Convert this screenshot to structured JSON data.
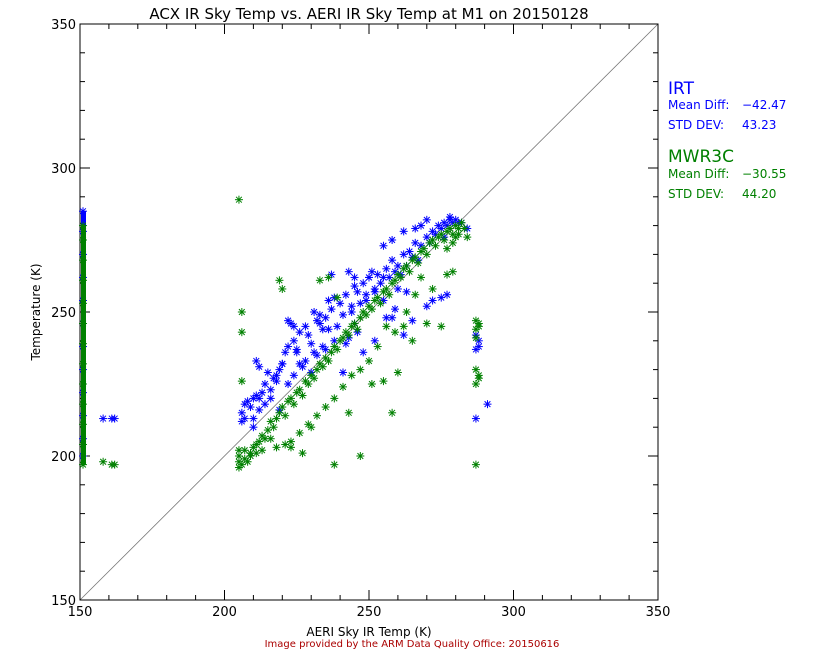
{
  "chart_data": {
    "type": "scatter",
    "title": "ACX IR Sky Temp vs. AERI IR Sky Temp at M1 on 20150128",
    "xlabel": "AERI Sky IR Temp (K)",
    "ylabel": "Temperature (K)",
    "xlim": [
      150,
      350
    ],
    "ylim": [
      150,
      350
    ],
    "xticks": [
      150,
      200,
      250,
      300,
      350
    ],
    "yticks": [
      150,
      200,
      250,
      300,
      350
    ],
    "reference_line": "y = x",
    "grid": false,
    "legend_position": "right",
    "footer": "Image provided by the ARM Data Quality Office: 20150616",
    "colors": {
      "IRT": "#0000ff",
      "MWR3C": "#008000",
      "footer": "#aa0000"
    },
    "series": [
      {
        "name": "IRT",
        "mean_diff_label": "Mean Diff:",
        "mean_diff": "−42.47",
        "std_dev_label": "STD DEV:",
        "std_dev": "43.23",
        "points": [
          [
            150,
            285
          ],
          [
            150,
            278
          ],
          [
            150,
            270
          ],
          [
            150,
            262
          ],
          [
            150,
            254
          ],
          [
            150,
            246
          ],
          [
            150,
            238
          ],
          [
            150,
            230
          ],
          [
            150,
            222
          ],
          [
            150,
            214
          ],
          [
            150,
            206
          ],
          [
            150,
            200
          ],
          [
            158,
            213
          ],
          [
            161,
            213
          ],
          [
            162,
            213
          ],
          [
            206,
            212
          ],
          [
            206,
            215
          ],
          [
            207,
            213
          ],
          [
            207,
            218
          ],
          [
            208,
            219
          ],
          [
            209,
            217
          ],
          [
            210,
            220
          ],
          [
            211,
            221
          ],
          [
            212,
            220
          ],
          [
            213,
            222
          ],
          [
            214,
            225
          ],
          [
            215,
            229
          ],
          [
            216,
            223
          ],
          [
            217,
            227
          ],
          [
            218,
            228
          ],
          [
            219,
            230
          ],
          [
            211,
            233
          ],
          [
            212,
            231
          ],
          [
            210,
            210
          ],
          [
            220,
            232
          ],
          [
            221,
            236
          ],
          [
            222,
            238
          ],
          [
            224,
            240
          ],
          [
            225,
            236
          ],
          [
            226,
            243
          ],
          [
            228,
            245
          ],
          [
            230,
            239
          ],
          [
            232,
            247
          ],
          [
            233,
            249
          ],
          [
            234,
            244
          ],
          [
            235,
            248
          ],
          [
            223,
            246
          ],
          [
            225,
            237
          ],
          [
            229,
            242
          ],
          [
            231,
            250
          ],
          [
            233,
            246
          ],
          [
            237,
            251
          ],
          [
            238,
            255
          ],
          [
            240,
            253
          ],
          [
            242,
            256
          ],
          [
            244,
            252
          ],
          [
            245,
            259
          ],
          [
            246,
            257
          ],
          [
            248,
            260
          ],
          [
            249,
            256
          ],
          [
            250,
            262
          ],
          [
            252,
            258
          ],
          [
            253,
            263
          ],
          [
            255,
            262
          ],
          [
            256,
            265
          ],
          [
            258,
            268
          ],
          [
            260,
            266
          ],
          [
            262,
            270
          ],
          [
            264,
            271
          ],
          [
            265,
            269
          ],
          [
            266,
            274
          ],
          [
            268,
            273
          ],
          [
            270,
            276
          ],
          [
            271,
            274
          ],
          [
            272,
            278
          ],
          [
            273,
            277
          ],
          [
            274,
            280
          ],
          [
            275,
            279
          ],
          [
            276,
            281
          ],
          [
            277,
            280
          ],
          [
            278,
            282
          ],
          [
            279,
            281
          ],
          [
            280,
            282
          ],
          [
            281,
            281
          ],
          [
            282,
            281
          ],
          [
            270,
            282
          ],
          [
            268,
            280
          ],
          [
            266,
            279
          ],
          [
            262,
            278
          ],
          [
            258,
            275
          ],
          [
            255,
            273
          ],
          [
            237,
            263
          ],
          [
            236,
            254
          ],
          [
            243,
            264
          ],
          [
            245,
            262
          ],
          [
            251,
            264
          ],
          [
            255,
            254
          ],
          [
            260,
            258
          ],
          [
            263,
            257
          ],
          [
            265,
            247
          ],
          [
            270,
            252
          ],
          [
            272,
            254
          ],
          [
            275,
            255
          ],
          [
            277,
            256
          ],
          [
            262,
            242
          ],
          [
            258,
            248
          ],
          [
            250,
            262
          ],
          [
            245,
            246
          ],
          [
            242,
            239
          ],
          [
            238,
            240
          ],
          [
            235,
            237
          ],
          [
            232,
            235
          ],
          [
            230,
            229
          ],
          [
            227,
            231
          ],
          [
            224,
            228
          ],
          [
            222,
            225
          ],
          [
            218,
            226
          ],
          [
            216,
            220
          ],
          [
            214,
            218
          ],
          [
            212,
            216
          ],
          [
            210,
            213
          ],
          [
            231,
            236
          ],
          [
            234,
            238
          ],
          [
            236,
            244
          ],
          [
            239,
            245
          ],
          [
            241,
            249
          ],
          [
            244,
            250
          ],
          [
            247,
            253
          ],
          [
            249,
            254
          ],
          [
            252,
            257
          ],
          [
            254,
            260
          ],
          [
            257,
            262
          ],
          [
            259,
            264
          ],
          [
            261,
            263
          ],
          [
            263,
            266
          ],
          [
            267,
            268
          ],
          [
            241,
            229
          ],
          [
            248,
            236
          ],
          [
            252,
            240
          ],
          [
            256,
            248
          ],
          [
            259,
            251
          ],
          [
            246,
            243
          ],
          [
            243,
            241
          ],
          [
            226,
            232
          ],
          [
            228,
            233
          ],
          [
            219,
            216
          ],
          [
            224,
            245
          ],
          [
            222,
            247
          ],
          [
            220,
            232
          ],
          [
            276,
            276
          ],
          [
            278,
            283
          ],
          [
            287,
            237
          ],
          [
            287,
            242
          ],
          [
            287,
            213
          ],
          [
            291,
            218
          ],
          [
            288,
            238
          ],
          [
            288,
            240
          ],
          [
            284,
            279
          ]
        ]
      },
      {
        "name": "MWR3C",
        "mean_diff_label": "Mean Diff:",
        "mean_diff": "−30.55",
        "std_dev_label": "STD DEV:",
        "std_dev": "44.20",
        "points": [
          [
            150,
            280
          ],
          [
            150,
            275
          ],
          [
            150,
            268
          ],
          [
            150,
            261
          ],
          [
            150,
            253
          ],
          [
            150,
            246
          ],
          [
            150,
            239
          ],
          [
            150,
            232
          ],
          [
            150,
            225
          ],
          [
            150,
            218
          ],
          [
            150,
            211
          ],
          [
            150,
            204
          ],
          [
            150,
            197
          ],
          [
            158,
            198
          ],
          [
            162,
            197
          ],
          [
            161,
            197
          ],
          [
            205,
            289
          ],
          [
            206,
            250
          ],
          [
            206,
            243
          ],
          [
            206,
            226
          ],
          [
            205,
            196
          ],
          [
            205,
            198
          ],
          [
            205,
            200
          ],
          [
            205,
            202
          ],
          [
            206,
            197
          ],
          [
            207,
            199
          ],
          [
            208,
            198
          ],
          [
            209,
            201
          ],
          [
            210,
            203
          ],
          [
            211,
            204
          ],
          [
            212,
            205
          ],
          [
            213,
            207
          ],
          [
            214,
            206
          ],
          [
            215,
            209
          ],
          [
            216,
            212
          ],
          [
            217,
            210
          ],
          [
            218,
            213
          ],
          [
            219,
            215
          ],
          [
            220,
            217
          ],
          [
            221,
            214
          ],
          [
            222,
            219
          ],
          [
            223,
            220
          ],
          [
            224,
            218
          ],
          [
            225,
            222
          ],
          [
            226,
            223
          ],
          [
            227,
            221
          ],
          [
            228,
            226
          ],
          [
            229,
            225
          ],
          [
            230,
            228
          ],
          [
            231,
            227
          ],
          [
            232,
            230
          ],
          [
            233,
            232
          ],
          [
            234,
            231
          ],
          [
            235,
            234
          ],
          [
            236,
            233
          ],
          [
            237,
            236
          ],
          [
            238,
            238
          ],
          [
            239,
            237
          ],
          [
            240,
            240
          ],
          [
            241,
            241
          ],
          [
            242,
            243
          ],
          [
            243,
            242
          ],
          [
            244,
            245
          ],
          [
            245,
            246
          ],
          [
            246,
            244
          ],
          [
            247,
            248
          ],
          [
            248,
            250
          ],
          [
            249,
            249
          ],
          [
            250,
            252
          ],
          [
            251,
            251
          ],
          [
            252,
            254
          ],
          [
            253,
            255
          ],
          [
            254,
            253
          ],
          [
            255,
            257
          ],
          [
            256,
            258
          ],
          [
            257,
            256
          ],
          [
            258,
            260
          ],
          [
            259,
            261
          ],
          [
            260,
            263
          ],
          [
            261,
            262
          ],
          [
            262,
            265
          ],
          [
            263,
            266
          ],
          [
            264,
            264
          ],
          [
            265,
            268
          ],
          [
            266,
            269
          ],
          [
            267,
            267
          ],
          [
            268,
            271
          ],
          [
            269,
            272
          ],
          [
            270,
            270
          ],
          [
            271,
            274
          ],
          [
            272,
            275
          ],
          [
            273,
            273
          ],
          [
            274,
            276
          ],
          [
            275,
            277
          ],
          [
            276,
            275
          ],
          [
            277,
            278
          ],
          [
            278,
            279
          ],
          [
            279,
            277
          ],
          [
            280,
            280
          ],
          [
            281,
            279
          ],
          [
            282,
            281
          ],
          [
            281,
            277
          ],
          [
            280,
            276
          ],
          [
            279,
            274
          ],
          [
            277,
            272
          ],
          [
            219,
            261
          ],
          [
            220,
            258
          ],
          [
            223,
            203
          ],
          [
            227,
            201
          ],
          [
            230,
            210
          ],
          [
            238,
            197
          ],
          [
            243,
            215
          ],
          [
            247,
            200
          ],
          [
            251,
            225
          ],
          [
            255,
            226
          ],
          [
            258,
            215
          ],
          [
            260,
            229
          ],
          [
            262,
            245
          ],
          [
            265,
            240
          ],
          [
            270,
            246
          ],
          [
            275,
            245
          ],
          [
            277,
            263
          ],
          [
            279,
            264
          ],
          [
            272,
            258
          ],
          [
            268,
            262
          ],
          [
            266,
            256
          ],
          [
            263,
            250
          ],
          [
            259,
            243
          ],
          [
            256,
            245
          ],
          [
            253,
            238
          ],
          [
            250,
            233
          ],
          [
            247,
            230
          ],
          [
            244,
            228
          ],
          [
            241,
            224
          ],
          [
            238,
            220
          ],
          [
            235,
            217
          ],
          [
            232,
            214
          ],
          [
            229,
            211
          ],
          [
            226,
            208
          ],
          [
            223,
            205
          ],
          [
            221,
            204
          ],
          [
            218,
            203
          ],
          [
            216,
            206
          ],
          [
            213,
            202
          ],
          [
            211,
            201
          ],
          [
            209,
            200
          ],
          [
            207,
            202
          ],
          [
            233,
            261
          ],
          [
            236,
            262
          ],
          [
            239,
            255
          ],
          [
            287,
            247
          ],
          [
            287,
            244
          ],
          [
            288,
            246
          ],
          [
            287,
            241
          ],
          [
            288,
            245
          ],
          [
            287,
            230
          ],
          [
            288,
            227
          ],
          [
            287,
            225
          ],
          [
            288,
            228
          ],
          [
            287,
            197
          ],
          [
            283,
            279
          ],
          [
            284,
            276
          ]
        ]
      }
    ]
  }
}
